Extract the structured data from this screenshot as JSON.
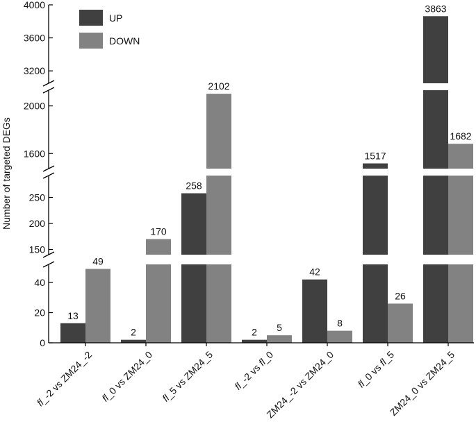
{
  "chart_data": {
    "type": "bar",
    "ylabel": "Number of targeted DEGs",
    "xlabel": "",
    "categories": [
      [
        "fl",
        "_-2 vs ZM24_-2"
      ],
      [
        "fl",
        "_0  vs ZM24_0"
      ],
      [
        "fl",
        "_5 vs ZM24_5"
      ],
      [
        "fl",
        "_-2 vs ",
        "fl",
        "_0"
      ],
      [
        "",
        "ZM24_-2 vs ZM24_0"
      ],
      [
        "fl",
        "_0 vs ",
        "fl",
        "_5"
      ],
      [
        "",
        "ZM24_0 vs ZM24_5"
      ]
    ],
    "series": [
      {
        "name": "UP",
        "color": "#404040",
        "values": [
          13,
          2,
          258,
          2,
          42,
          1517,
          3863
        ]
      },
      {
        "name": "DOWN",
        "color": "#828282",
        "values": [
          49,
          170,
          2102,
          5,
          8,
          26,
          1682
        ]
      }
    ],
    "y_segments": [
      {
        "range": [
          0,
          52
        ],
        "ticks": [
          0,
          20,
          40
        ]
      },
      {
        "range": [
          140,
          300
        ],
        "ticks": [
          150,
          200,
          250
        ]
      },
      {
        "range": [
          1450,
          2190
        ],
        "ticks": [
          1600,
          2000
        ]
      },
      {
        "range": [
          3050,
          4000
        ],
        "ticks": [
          3200,
          3600,
          4000
        ]
      }
    ],
    "legend_position": "top-left",
    "grid": false
  }
}
